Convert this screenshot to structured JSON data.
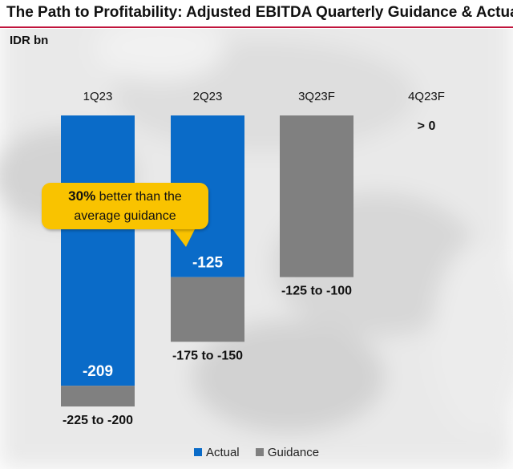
{
  "title": "The Path to Profitability: Adjusted EBITDA Quarterly Guidance & Actual",
  "unit_label": "IDR bn",
  "callout": {
    "highlight": "30%",
    "line1_rest": " better than the",
    "line2": "average guidance"
  },
  "legend": [
    {
      "label": "Actual",
      "color": "#0a6bc8"
    },
    {
      "label": "Guidance",
      "color": "#808080"
    }
  ],
  "chart_data": {
    "type": "bar",
    "title": "The Path to Profitability: Adjusted EBITDA Quarterly Guidance & Actual",
    "ylabel": "IDR bn",
    "categories": [
      "1Q23",
      "2Q23",
      "3Q23F",
      "4Q23F"
    ],
    "ylim": [
      -225,
      0
    ],
    "grid": false,
    "legend_position": "bottom",
    "series": [
      {
        "name": "Actual",
        "color": "#0a6bc8",
        "values": [
          -209,
          -125,
          null,
          null
        ],
        "labels": [
          "-209",
          "-125",
          "",
          ""
        ]
      },
      {
        "name": "Guidance",
        "color": "#808080",
        "ranges": [
          [
            -225,
            -200
          ],
          [
            -175,
            -150
          ],
          [
            -125,
            -100
          ],
          [
            0,
            null
          ]
        ],
        "labels": [
          "-225 to -200",
          "-175 to -150",
          "-125 to -100",
          "> 0"
        ]
      }
    ]
  }
}
